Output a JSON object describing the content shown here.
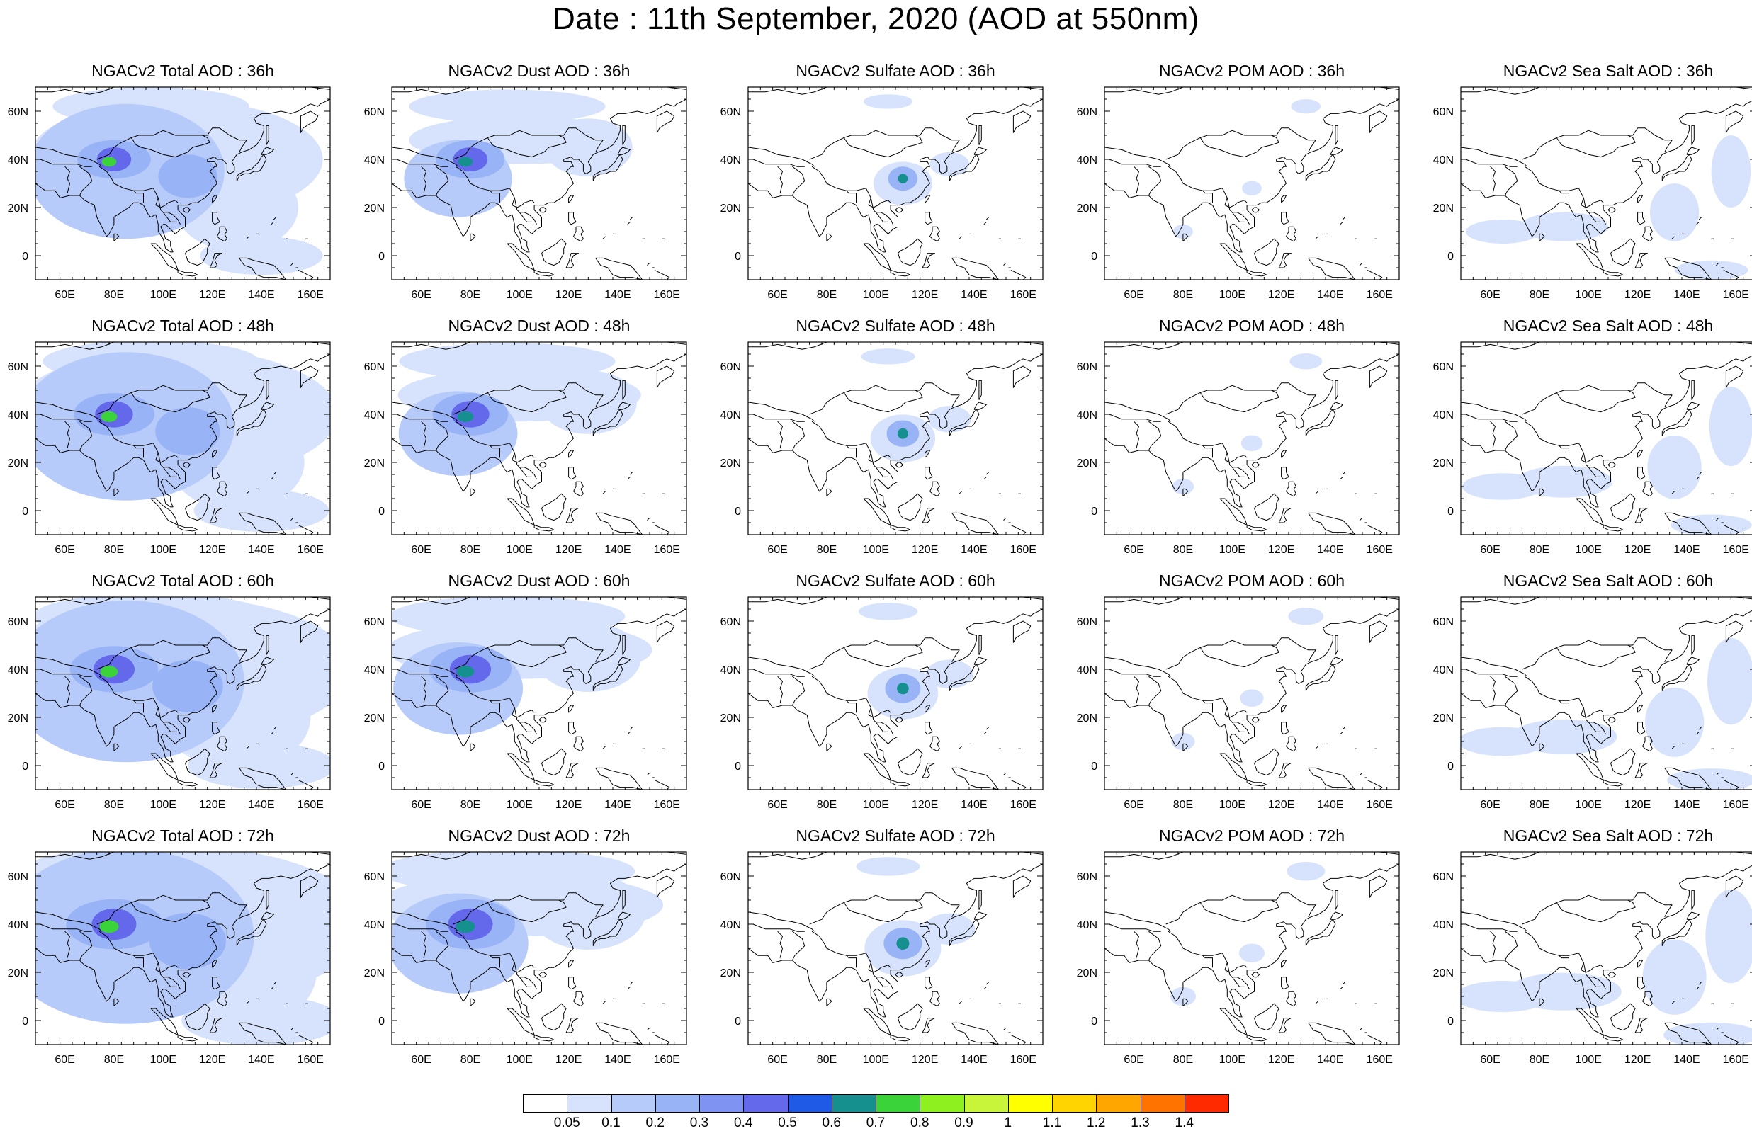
{
  "figure": {
    "title": "Date : 11th September, 2020 (AOD at 550nm)"
  },
  "map_axes": {
    "lon_range": [
      48,
      168
    ],
    "lat_range": [
      -10,
      70
    ],
    "x_ticks": [
      "60E",
      "80E",
      "100E",
      "120E",
      "140E",
      "160E"
    ],
    "x_tick_values": [
      60,
      80,
      100,
      120,
      140,
      160
    ],
    "y_ticks": [
      "0",
      "20N",
      "40N",
      "60N"
    ],
    "y_tick_values": [
      0,
      20,
      40,
      60
    ]
  },
  "colorbar": {
    "colors": [
      "#ffffff",
      "#d7e3fc",
      "#b7cbfa",
      "#98b4f7",
      "#7e93f2",
      "#6469ec",
      "#1f5ae6",
      "#16908e",
      "#3ad43a",
      "#8ef01f",
      "#c8f53a",
      "#ffff00",
      "#ffd400",
      "#ffa600",
      "#ff7300",
      "#ff2a00"
    ],
    "labels": [
      "0.05",
      "0.1",
      "0.2",
      "0.3",
      "0.4",
      "0.5",
      "0.6",
      "0.7",
      "0.8",
      "0.9",
      "1",
      "1.1",
      "1.2",
      "1.3",
      "1.4"
    ]
  },
  "panels": [
    {
      "title": "NGACv2 Total AOD : 36h",
      "species": "total",
      "hour": 36
    },
    {
      "title": "NGACv2 Dust AOD : 36h",
      "species": "dust",
      "hour": 36
    },
    {
      "title": "NGACv2 Sulfate AOD : 36h",
      "species": "sulfate",
      "hour": 36
    },
    {
      "title": "NGACv2 POM AOD : 36h",
      "species": "pom",
      "hour": 36
    },
    {
      "title": "NGACv2 Sea Salt AOD : 36h",
      "species": "seasalt",
      "hour": 36
    },
    {
      "title": "NGACv2 Total AOD : 48h",
      "species": "total",
      "hour": 48
    },
    {
      "title": "NGACv2 Dust AOD : 48h",
      "species": "dust",
      "hour": 48
    },
    {
      "title": "NGACv2 Sulfate AOD : 48h",
      "species": "sulfate",
      "hour": 48
    },
    {
      "title": "NGACv2 POM AOD : 48h",
      "species": "pom",
      "hour": 48
    },
    {
      "title": "NGACv2 Sea Salt AOD : 48h",
      "species": "seasalt",
      "hour": 48
    },
    {
      "title": "NGACv2 Total AOD : 60h",
      "species": "total",
      "hour": 60
    },
    {
      "title": "NGACv2 Dust AOD : 60h",
      "species": "dust",
      "hour": 60
    },
    {
      "title": "NGACv2 Sulfate AOD : 60h",
      "species": "sulfate",
      "hour": 60
    },
    {
      "title": "NGACv2 POM AOD : 60h",
      "species": "pom",
      "hour": 60
    },
    {
      "title": "NGACv2 Sea Salt AOD : 60h",
      "species": "seasalt",
      "hour": 60
    },
    {
      "title": "NGACv2 Total AOD : 72h",
      "species": "total",
      "hour": 72
    },
    {
      "title": "NGACv2 Dust AOD : 72h",
      "species": "dust",
      "hour": 72
    },
    {
      "title": "NGACv2 Sulfate AOD : 72h",
      "species": "sulfate",
      "hour": 72
    },
    {
      "title": "NGACv2 POM AOD : 72h",
      "species": "pom",
      "hour": 72
    },
    {
      "title": "NGACv2 Sea Salt  AOD : 72h",
      "species": "seasalt",
      "hour": 72
    }
  ],
  "aod_features": {
    "total": [
      {
        "lon": 78,
        "lat": 39,
        "rlon": 3,
        "rlat": 2,
        "level": 8
      },
      {
        "lon": 80,
        "lat": 40,
        "rlon": 7,
        "rlat": 5,
        "level": 5
      },
      {
        "lon": 80,
        "lat": 40,
        "rlon": 15,
        "rlat": 8,
        "level": 3
      },
      {
        "lon": 85,
        "lat": 35,
        "rlon": 40,
        "rlat": 28,
        "level": 2
      },
      {
        "lon": 110,
        "lat": 33,
        "rlon": 12,
        "rlat": 9,
        "level": 3
      },
      {
        "lon": 105,
        "lat": 40,
        "rlon": 60,
        "rlat": 25,
        "level": 1
      },
      {
        "lon": 95,
        "lat": 62,
        "rlon": 40,
        "rlat": 8,
        "level": 1
      },
      {
        "lon": 130,
        "lat": 20,
        "rlon": 25,
        "rlat": 18,
        "level": 1
      },
      {
        "lon": 140,
        "lat": 0,
        "rlon": 25,
        "rlat": 8,
        "level": 1
      }
    ],
    "dust": [
      {
        "lon": 78,
        "lat": 39,
        "rlon": 3,
        "rlat": 2,
        "level": 7
      },
      {
        "lon": 80,
        "lat": 40,
        "rlon": 7,
        "rlat": 5,
        "level": 5
      },
      {
        "lon": 80,
        "lat": 40,
        "rlon": 14,
        "rlat": 8,
        "level": 3
      },
      {
        "lon": 75,
        "lat": 32,
        "rlon": 22,
        "rlat": 16,
        "level": 2
      },
      {
        "lon": 100,
        "lat": 48,
        "rlon": 45,
        "rlat": 10,
        "level": 1
      },
      {
        "lon": 95,
        "lat": 62,
        "rlon": 40,
        "rlat": 7,
        "level": 1
      },
      {
        "lon": 128,
        "lat": 45,
        "rlon": 18,
        "rlat": 12,
        "level": 1
      }
    ],
    "sulfate": [
      {
        "lon": 111,
        "lat": 32,
        "rlon": 2,
        "rlat": 2,
        "level": 7
      },
      {
        "lon": 111,
        "lat": 32,
        "rlon": 6,
        "rlat": 5,
        "level": 3
      },
      {
        "lon": 111,
        "lat": 30,
        "rlon": 12,
        "rlat": 9,
        "level": 1
      },
      {
        "lon": 130,
        "lat": 38,
        "rlon": 8,
        "rlat": 5,
        "level": 1
      },
      {
        "lon": 105,
        "lat": 64,
        "rlon": 10,
        "rlat": 3,
        "level": 1
      }
    ],
    "pom": [
      {
        "lon": 108,
        "lat": 28,
        "rlon": 4,
        "rlat": 3,
        "level": 1
      },
      {
        "lon": 130,
        "lat": 62,
        "rlon": 6,
        "rlat": 3,
        "level": 1
      },
      {
        "lon": 80,
        "lat": 10,
        "rlon": 4,
        "rlat": 3,
        "level": 1
      }
    ],
    "seasalt": [
      {
        "lon": 135,
        "lat": 18,
        "rlon": 10,
        "rlat": 12,
        "level": 1
      },
      {
        "lon": 90,
        "lat": 12,
        "rlon": 18,
        "rlat": 6,
        "level": 1
      },
      {
        "lon": 65,
        "lat": 10,
        "rlon": 15,
        "rlat": 5,
        "level": 1
      },
      {
        "lon": 150,
        "lat": -6,
        "rlon": 15,
        "rlat": 4,
        "level": 1
      },
      {
        "lon": 158,
        "lat": 35,
        "rlon": 8,
        "rlat": 15,
        "level": 1
      }
    ]
  }
}
